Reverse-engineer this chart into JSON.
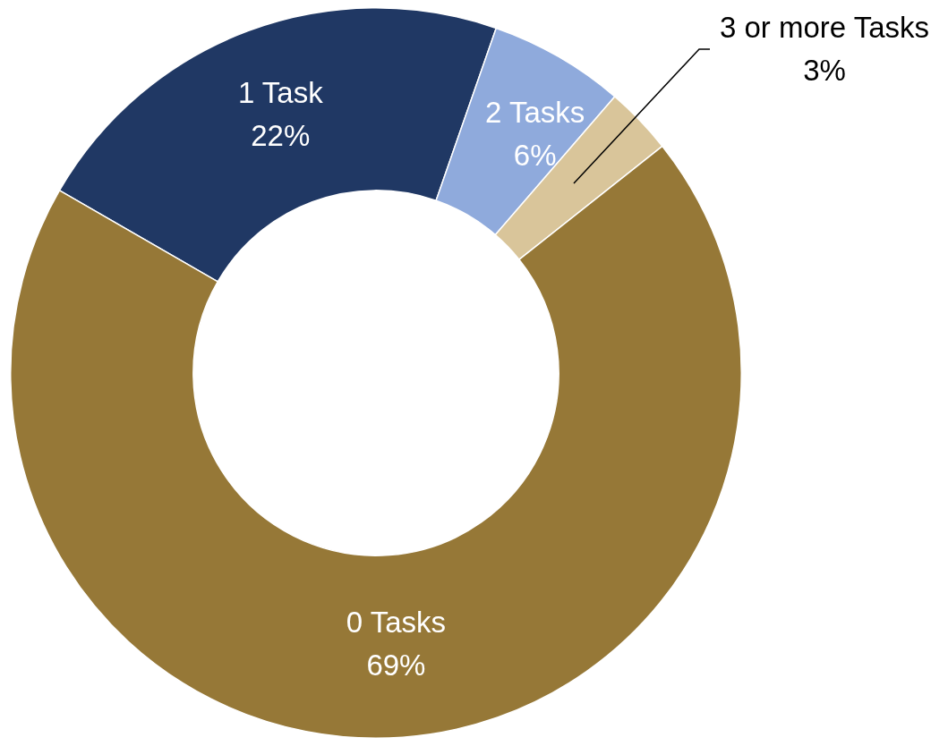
{
  "chart_data": {
    "type": "donut",
    "categories": [
      "1 Task",
      "2 Tasks",
      "3 or more Tasks",
      "0 Tasks"
    ],
    "values": [
      22,
      6,
      3,
      69
    ],
    "colors": [
      "#203864",
      "#8faadc",
      "#d9c59a",
      "#967837"
    ],
    "value_labels": [
      "22%",
      "6%",
      "3%",
      "69%"
    ],
    "legend": false
  }
}
